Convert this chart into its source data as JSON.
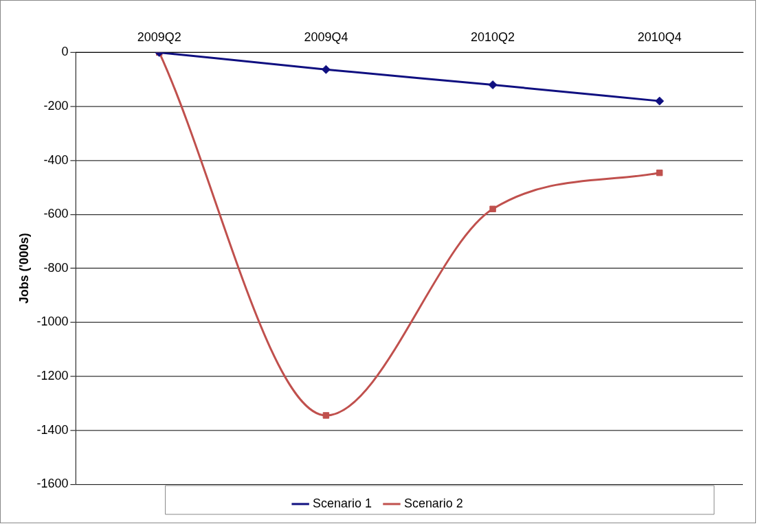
{
  "chart_data": {
    "type": "line",
    "ylabel": "Jobs ('000s)",
    "categories": [
      "2009Q2",
      "2009Q4",
      "2010Q2",
      "2010Q4"
    ],
    "series": [
      {
        "name": "Scenario 1",
        "color": "#0f0f80",
        "values": [
          0,
          -63,
          -120,
          -180
        ],
        "marker": "diamond"
      },
      {
        "name": "Scenario 2",
        "color": "#c0504d",
        "values": [
          0,
          -1345,
          -580,
          -446
        ],
        "marker": "square"
      }
    ],
    "ylim": [
      -1600,
      0
    ],
    "yticks": [
      -1600,
      -1400,
      -1200,
      -1000,
      -800,
      -600,
      -400,
      -200,
      0
    ],
    "grid": "y",
    "legend": "bottom"
  }
}
